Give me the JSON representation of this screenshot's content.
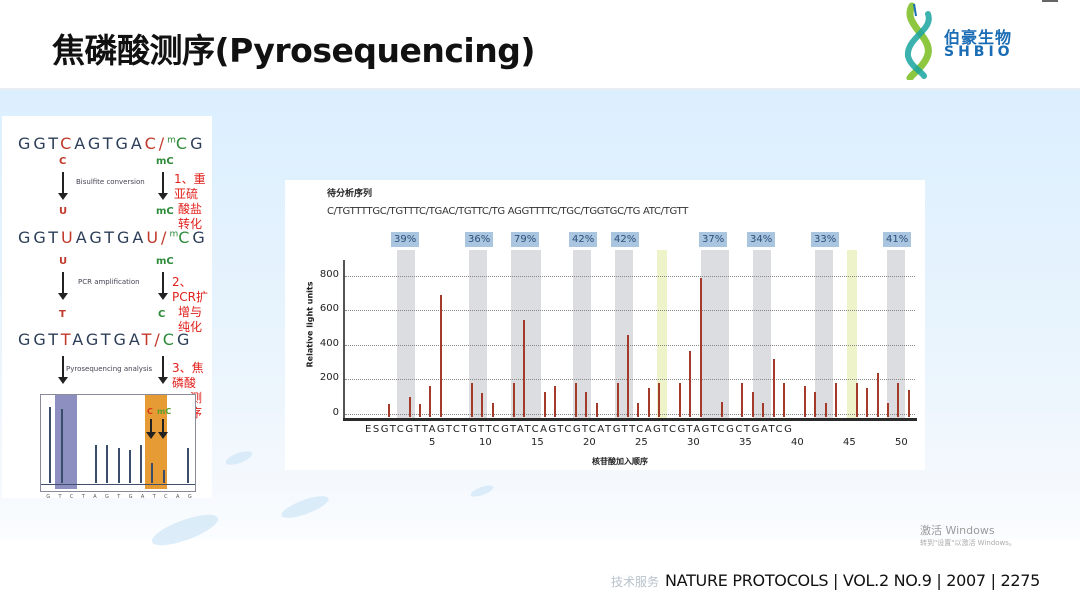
{
  "slide": {
    "title": "焦磷酸测序(Pyrosequencing)",
    "logo": {
      "cn": "伯豪生物",
      "en": "SHBIO",
      "colors": {
        "green": "#8dc63f",
        "teal": "#1aa5a0",
        "blue": "#1a6db5"
      }
    }
  },
  "left_panel": {
    "seq1": {
      "pre": "GGT",
      "c1": "C",
      "mid": "AGTGA",
      "c2": "C/",
      "m": "m",
      "c3": "C",
      "post": "G"
    },
    "row1_nt": {
      "left": "C",
      "right": "mC"
    },
    "step1": {
      "label": "Bisulfite conversion",
      "cn_line1": "1、重亚硫",
      "cn_line2": "酸盐转化"
    },
    "row2_nt": {
      "left": "U",
      "right": "mC"
    },
    "seq2": {
      "pre": "GGT",
      "c1": "U",
      "mid": "AGTGA",
      "c2": "U/",
      "m": "m",
      "c3": "C",
      "post": "G"
    },
    "row3_nt": {
      "left": "U",
      "right": "mC"
    },
    "step2": {
      "label": "PCR amplification",
      "cn_line1": "2、PCR扩",
      "cn_line2": "增与纯化"
    },
    "row4_nt": {
      "left": "T",
      "right": "C"
    },
    "seq3": {
      "pre": "GGT",
      "c1": "T",
      "mid": "AGTGA",
      "c2": "T/",
      "c3": "C",
      "post": "G"
    },
    "step3": {
      "label": "Pyrosequencing analysis",
      "cn_line1": "3、焦磷酸",
      "cn_line2": "测序"
    },
    "mini_chart": {
      "bases": [
        "G",
        "T",
        "C",
        "T",
        "A",
        "G",
        "T",
        "G",
        "A",
        "T",
        "C",
        "A",
        "G"
      ],
      "c_label": "C",
      "mc_label": "mC",
      "colors": {
        "highlight_blue": "#8d8fc0",
        "highlight_orange": "#e79b35"
      }
    }
  },
  "chart_data": {
    "type": "bar",
    "title": "待分析序列",
    "sequence_to_analyze": "C/TGTTTTGC/TGTTTC/TGAC/TGTTC/TG AGGTTTTC/TGC/TGGTGC/TG ATC/TGTT",
    "methylation_percentages": [
      "39%",
      "36%",
      "79%",
      "42%",
      "42%",
      "37%",
      "34%",
      "33%",
      "41%"
    ],
    "ylabel": "Relative light units",
    "xlabel": "核苷酸加入顺序",
    "ylim": [
      0,
      900
    ],
    "yticks": [
      0,
      200,
      400,
      600,
      800
    ],
    "dispensation_order": "ESGTCGTTAGTCTGTTCGTATCAGTCGTCATGTTCAGTCGTAGTCGCTGATCG",
    "xtick_labels": [
      "5",
      "10",
      "15",
      "20",
      "25",
      "30",
      "35",
      "40",
      "45",
      "50"
    ],
    "categories": [
      "E",
      "S",
      "G",
      "T",
      "C",
      "G",
      "T",
      "T",
      "A",
      "G",
      "T",
      "C",
      "T",
      "G",
      "T",
      "T",
      "C",
      "G",
      "T",
      "A",
      "T",
      "C",
      "A",
      "G",
      "T",
      "C",
      "G",
      "T",
      "C",
      "A",
      "T",
      "G",
      "T",
      "T",
      "C",
      "A",
      "G",
      "T",
      "C",
      "G",
      "T",
      "A",
      "G",
      "T",
      "C",
      "G",
      "C",
      "T",
      "G",
      "A",
      "T",
      "C",
      "G"
    ],
    "values": [
      0,
      0,
      75,
      0,
      120,
      75,
      180,
      720,
      0,
      0,
      200,
      140,
      80,
      0,
      200,
      570,
      0,
      150,
      180,
      0,
      200,
      150,
      80,
      0,
      200,
      480,
      80,
      170,
      200,
      0,
      200,
      390,
      820,
      0,
      90,
      0,
      200,
      150,
      80,
      340,
      200,
      0,
      180,
      150,
      80,
      200,
      0,
      200,
      170,
      260,
      80,
      200,
      160
    ],
    "colors": {
      "peak": "#a33a2a",
      "band_grey": "#dcdde0",
      "band_yellow": "#eef3c9",
      "pct_box": "#a9c5df"
    }
  },
  "watermark": {
    "line1": "激活 Windows",
    "line2": "转到\"设置\"以激活 Windows。"
  },
  "footer": {
    "faint": "技术服务",
    "citation": "NATURE PROTOCOLS | VOL.2 NO.9 | 2007 | 2275"
  }
}
